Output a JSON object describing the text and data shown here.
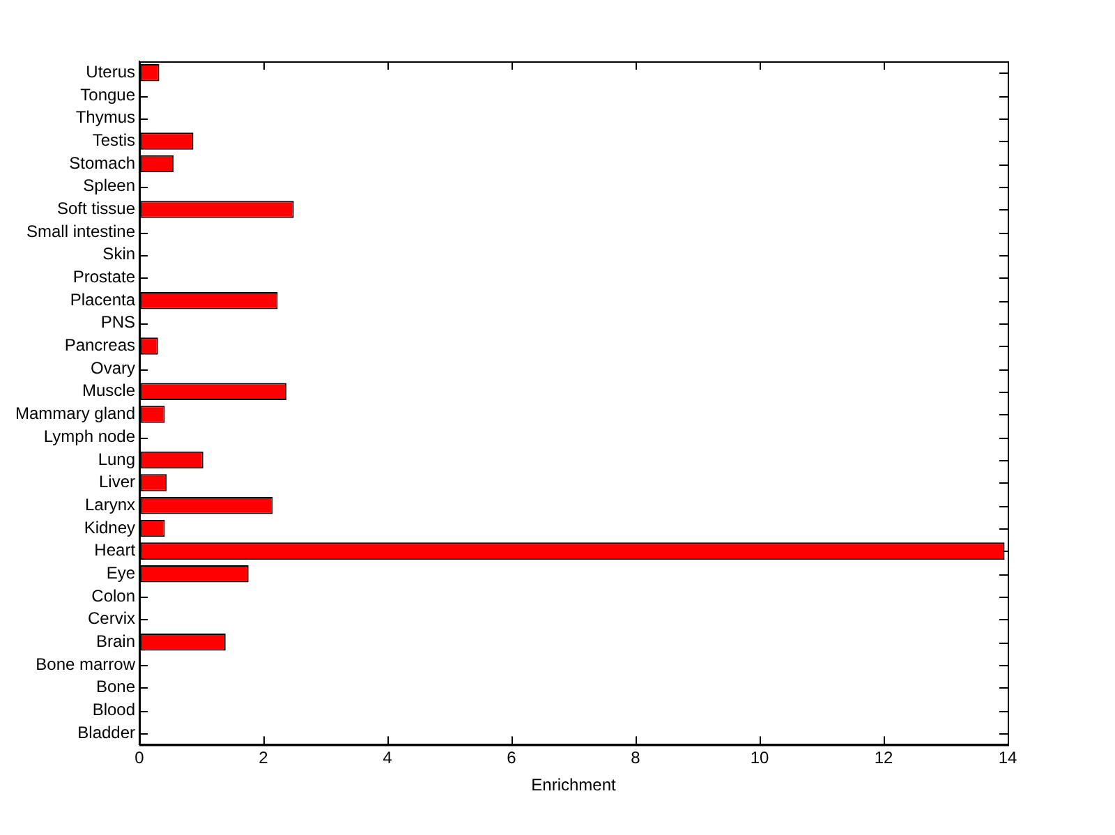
{
  "chart_data": {
    "type": "bar",
    "orientation": "horizontal",
    "xlabel": "Enrichment",
    "categories": [
      "Uterus",
      "Tongue",
      "Thymus",
      "Testis",
      "Stomach",
      "Spleen",
      "Soft tissue",
      "Small intestine",
      "Skin",
      "Prostate",
      "Placenta",
      "PNS",
      "Pancreas",
      "Ovary",
      "Muscle",
      "Mammary gland",
      "Lymph node",
      "Lung",
      "Liver",
      "Larynx",
      "Kidney",
      "Heart",
      "Eye",
      "Colon",
      "Cervix",
      "Brain",
      "Bone marrow",
      "Bone",
      "Blood",
      "Bladder"
    ],
    "values": [
      0.32,
      0,
      0,
      0.87,
      0.55,
      0,
      2.49,
      0,
      0,
      0,
      2.23,
      0,
      0.3,
      0,
      2.37,
      0.41,
      0,
      1.03,
      0.44,
      2.15,
      0.41,
      13.95,
      1.76,
      0,
      0,
      1.39,
      0,
      0,
      0,
      0
    ],
    "color": "#ff0000",
    "xlim": [
      0,
      14
    ],
    "xticks": [
      0,
      2,
      4,
      6,
      8,
      10,
      12,
      14
    ],
    "grid": false,
    "legend": false
  }
}
